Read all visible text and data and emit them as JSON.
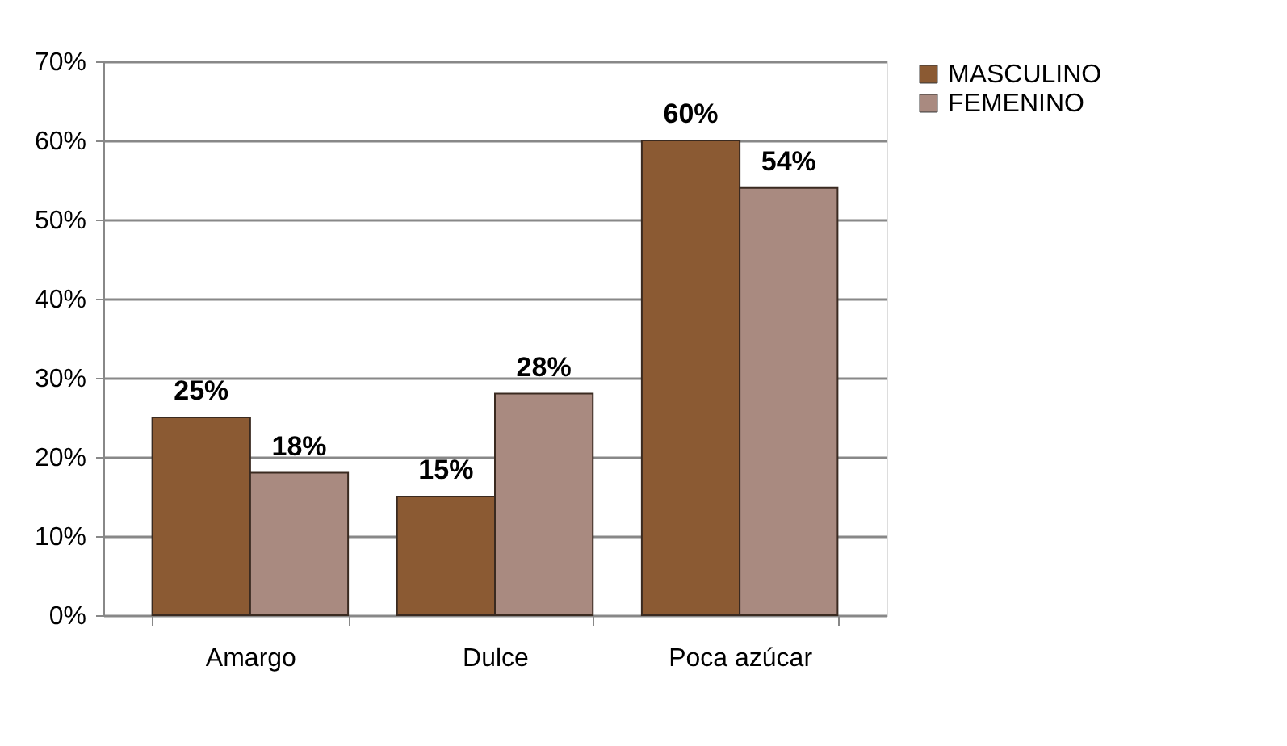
{
  "chart_data": {
    "type": "bar",
    "categories": [
      "Amargo",
      "Dulce",
      "Poca azúcar"
    ],
    "series": [
      {
        "name": "MASCULINO",
        "color": "#8b5a33",
        "values": [
          25,
          15,
          60
        ]
      },
      {
        "name": "FEMENINO",
        "color": "#a98a80",
        "values": [
          18,
          28,
          54
        ]
      }
    ],
    "ylim": [
      0,
      70
    ],
    "yticks": [
      {
        "value": 0,
        "label": "0%"
      },
      {
        "value": 10,
        "label": "10%"
      },
      {
        "value": 20,
        "label": "20%"
      },
      {
        "value": 30,
        "label": "30%"
      },
      {
        "value": 40,
        "label": "40%"
      },
      {
        "value": 50,
        "label": "50%"
      },
      {
        "value": 60,
        "label": "60%"
      },
      {
        "value": 70,
        "label": "70%"
      }
    ],
    "value_labels": [
      [
        "25%",
        "15%",
        "60%"
      ],
      [
        "18%",
        "28%",
        "54%"
      ]
    ],
    "grid": "y",
    "legend": "right"
  }
}
